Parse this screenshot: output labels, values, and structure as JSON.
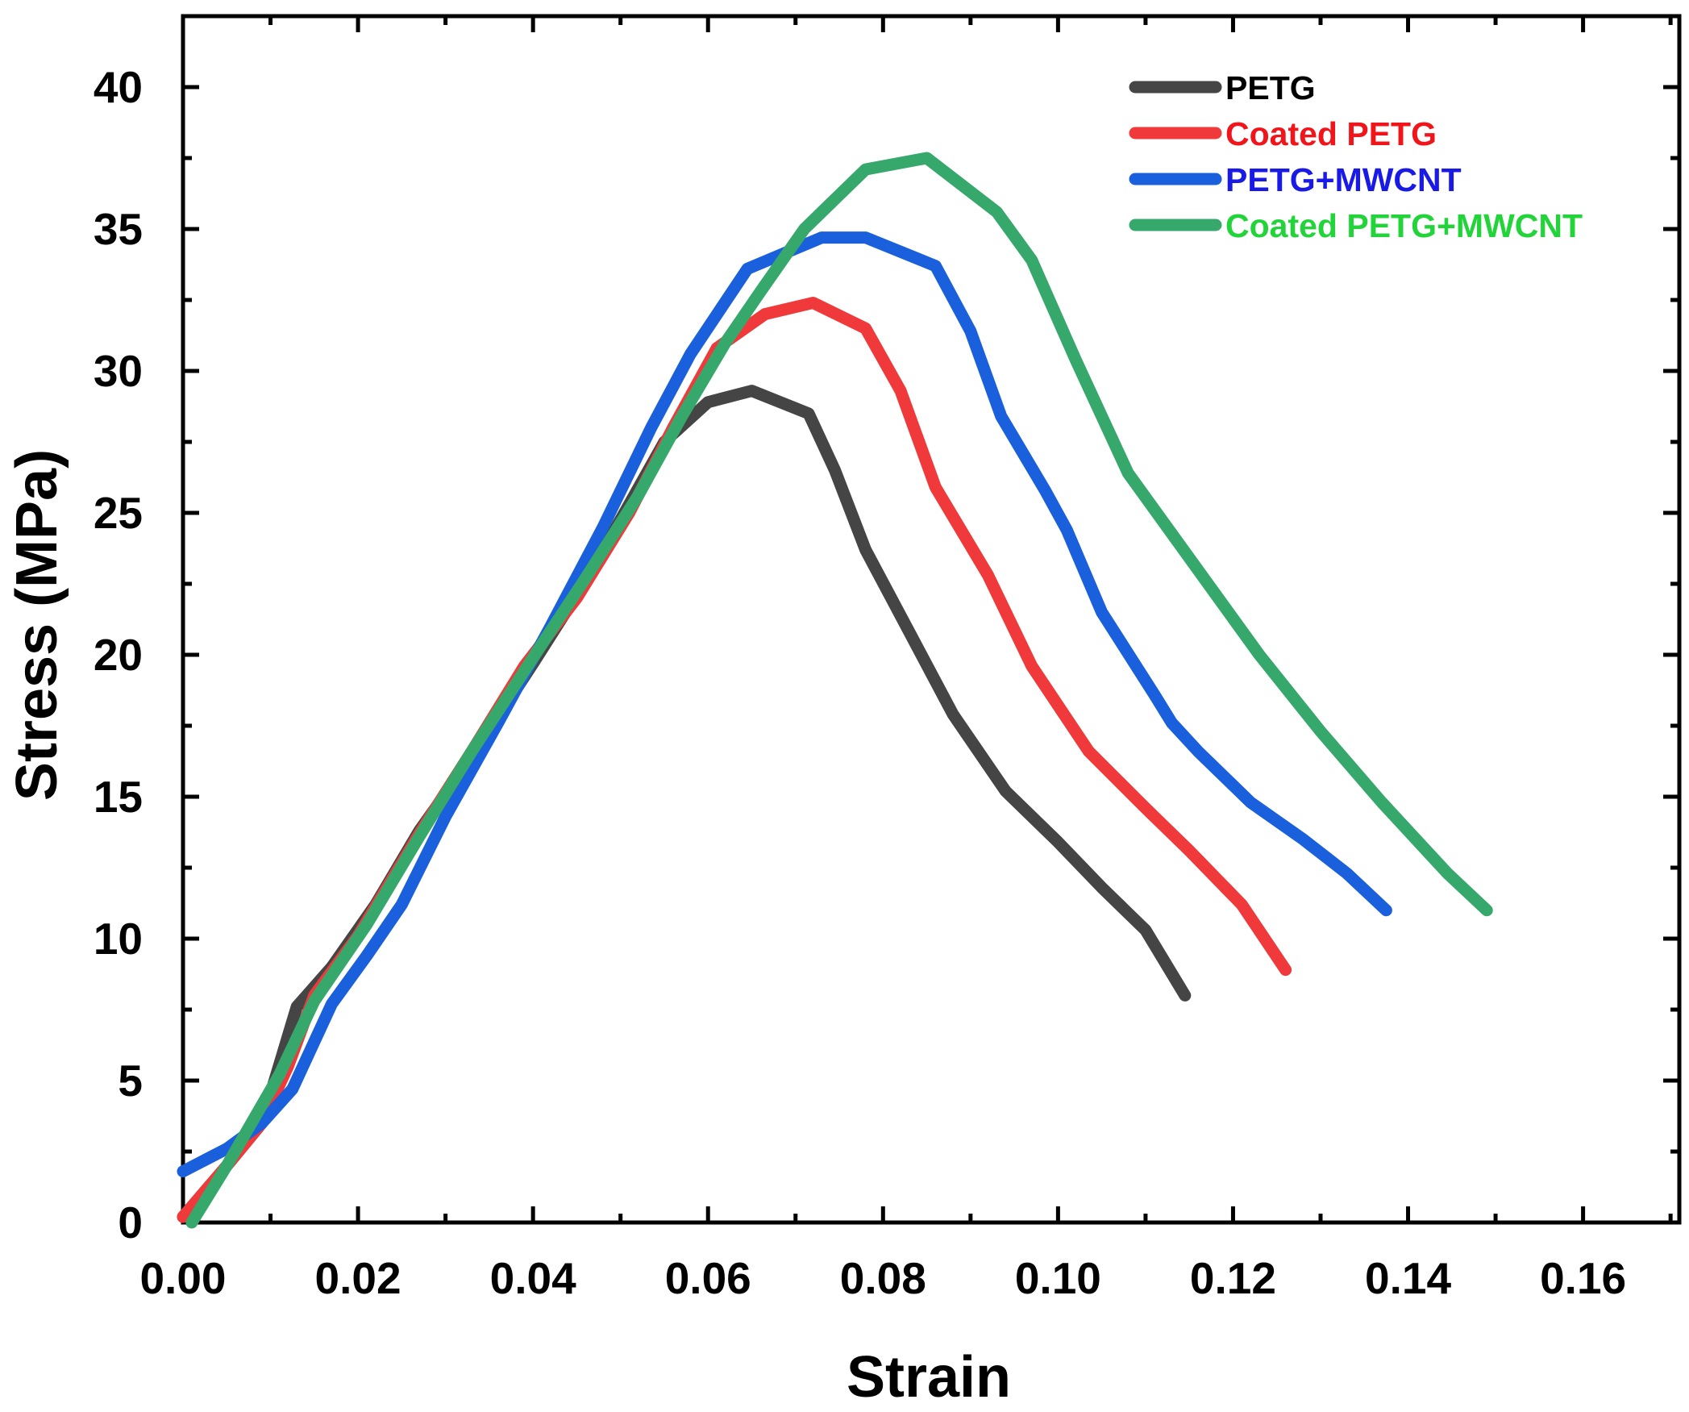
{
  "chart_data": {
    "type": "line",
    "title": "",
    "xlabel": "Strain",
    "ylabel": "Stress (MPa)",
    "xlim": [
      0,
      0.171
    ],
    "ylim": [
      0,
      42.5
    ],
    "x_ticks": [
      0.0,
      0.02,
      0.04,
      0.06,
      0.08,
      0.1,
      0.12,
      0.14,
      0.16
    ],
    "x_tick_labels": [
      "0.00",
      "0.02",
      "0.04",
      "0.06",
      "0.08",
      "0.10",
      "0.12",
      "0.14",
      "0.16"
    ],
    "y_ticks": [
      0,
      5,
      10,
      15,
      20,
      25,
      30,
      35,
      40
    ],
    "y_tick_labels": [
      "0",
      "5",
      "10",
      "15",
      "20",
      "25",
      "30",
      "35",
      "40"
    ],
    "grid": false,
    "legend_position": "top-right",
    "series": [
      {
        "name": "PETG",
        "color": "#454545",
        "points": [
          [
            0.0,
            0.2
          ],
          [
            0.005,
            2.0
          ],
          [
            0.009,
            3.5
          ],
          [
            0.013,
            7.6
          ],
          [
            0.017,
            9.0
          ],
          [
            0.022,
            11.2
          ],
          [
            0.027,
            13.8
          ],
          [
            0.033,
            16.4
          ],
          [
            0.04,
            19.7
          ],
          [
            0.046,
            22.6
          ],
          [
            0.051,
            25.3
          ],
          [
            0.055,
            27.5
          ],
          [
            0.06,
            28.9
          ],
          [
            0.065,
            29.3
          ],
          [
            0.0715,
            28.5
          ],
          [
            0.0745,
            26.5
          ],
          [
            0.078,
            23.7
          ],
          [
            0.083,
            20.8
          ],
          [
            0.088,
            17.9
          ],
          [
            0.094,
            15.2
          ],
          [
            0.1,
            13.4
          ],
          [
            0.105,
            11.8
          ],
          [
            0.11,
            10.3
          ],
          [
            0.1145,
            8.0
          ]
        ]
      },
      {
        "name": "Coated PETG",
        "color": "#f0393a",
        "points": [
          [
            0.0,
            0.2
          ],
          [
            0.005,
            2.0
          ],
          [
            0.009,
            3.5
          ],
          [
            0.012,
            5.5
          ],
          [
            0.015,
            8.0
          ],
          [
            0.02,
            10.1
          ],
          [
            0.027,
            13.7
          ],
          [
            0.033,
            16.6
          ],
          [
            0.039,
            19.6
          ],
          [
            0.045,
            22.0
          ],
          [
            0.051,
            25.0
          ],
          [
            0.056,
            28.0
          ],
          [
            0.061,
            30.8
          ],
          [
            0.0665,
            32.0
          ],
          [
            0.072,
            32.4
          ],
          [
            0.078,
            31.5
          ],
          [
            0.082,
            29.3
          ],
          [
            0.086,
            25.9
          ],
          [
            0.092,
            22.8
          ],
          [
            0.097,
            19.6
          ],
          [
            0.1035,
            16.6
          ],
          [
            0.11,
            14.6
          ],
          [
            0.115,
            13.1
          ],
          [
            0.121,
            11.2
          ],
          [
            0.126,
            8.9
          ]
        ]
      },
      {
        "name": "PETG+MWCNT",
        "color": "#1a60dc",
        "points": [
          [
            0.0,
            1.8
          ],
          [
            0.005,
            2.6
          ],
          [
            0.009,
            3.5
          ],
          [
            0.0125,
            4.7
          ],
          [
            0.017,
            7.7
          ],
          [
            0.021,
            9.4
          ],
          [
            0.025,
            11.2
          ],
          [
            0.03,
            14.3
          ],
          [
            0.036,
            17.6
          ],
          [
            0.042,
            21.0
          ],
          [
            0.048,
            24.5
          ],
          [
            0.0535,
            28.0
          ],
          [
            0.058,
            30.6
          ],
          [
            0.0645,
            33.6
          ],
          [
            0.073,
            34.7
          ],
          [
            0.078,
            34.7
          ],
          [
            0.086,
            33.7
          ],
          [
            0.09,
            31.4
          ],
          [
            0.0935,
            28.4
          ],
          [
            0.0985,
            25.8
          ],
          [
            0.101,
            24.4
          ],
          [
            0.105,
            21.5
          ],
          [
            0.111,
            18.6
          ],
          [
            0.113,
            17.6
          ],
          [
            0.116,
            16.6
          ],
          [
            0.122,
            14.8
          ],
          [
            0.128,
            13.5
          ],
          [
            0.133,
            12.3
          ],
          [
            0.1375,
            11.0
          ]
        ]
      },
      {
        "name": "Coated PETG+MWCNT",
        "color": "#37a86c",
        "points": [
          [
            0.001,
            0.0
          ],
          [
            0.005,
            2.0
          ],
          [
            0.011,
            5.2
          ],
          [
            0.015,
            7.8
          ],
          [
            0.021,
            10.5
          ],
          [
            0.027,
            13.6
          ],
          [
            0.033,
            16.6
          ],
          [
            0.04,
            19.9
          ],
          [
            0.046,
            22.7
          ],
          [
            0.052,
            25.6
          ],
          [
            0.057,
            28.4
          ],
          [
            0.062,
            31.0
          ],
          [
            0.066,
            32.8
          ],
          [
            0.071,
            35.0
          ],
          [
            0.078,
            37.1
          ],
          [
            0.085,
            37.5
          ],
          [
            0.093,
            35.6
          ],
          [
            0.097,
            33.9
          ],
          [
            0.102,
            30.4
          ],
          [
            0.108,
            26.4
          ],
          [
            0.1155,
            23.2
          ],
          [
            0.123,
            20.0
          ],
          [
            0.13,
            17.3
          ],
          [
            0.137,
            14.8
          ],
          [
            0.1445,
            12.3
          ],
          [
            0.149,
            11.0
          ]
        ]
      }
    ]
  }
}
